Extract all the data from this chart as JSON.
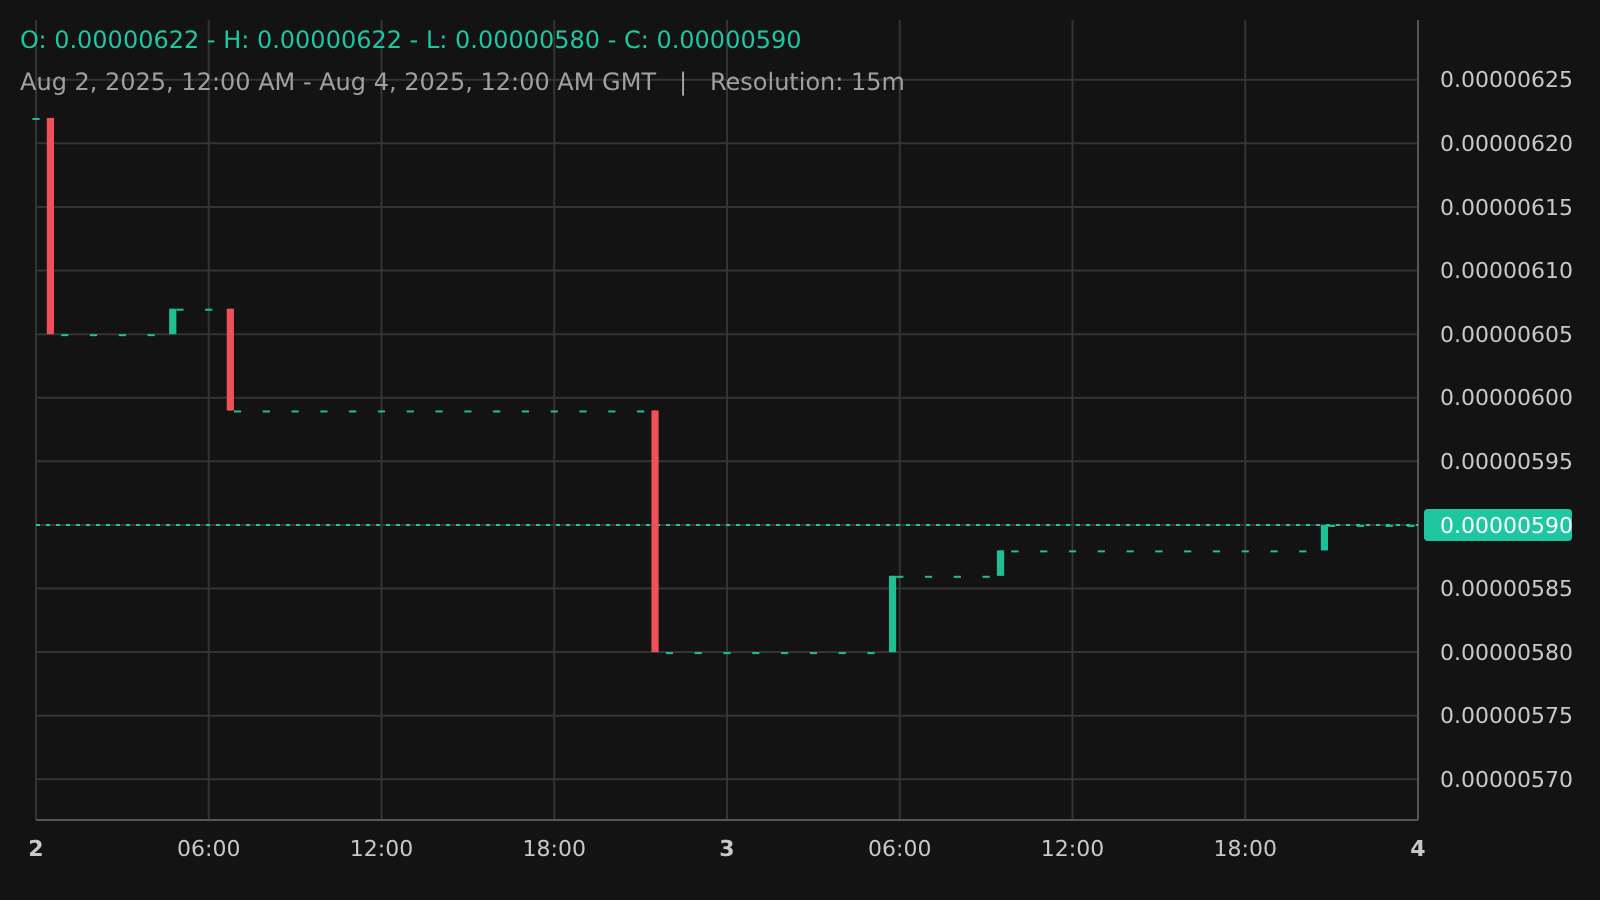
{
  "chart_data": {
    "type": "candlestick",
    "title": "O: 0.00000622 - H: 0.00000622 - L: 0.00000580 - C: 0.00000590",
    "subtitle": "Aug 2, 2025, 12:00 AM - Aug 4, 2025, 12:00 AM GMT   |   Resolution: 15m",
    "x": [
      "2025-08-02T00:00",
      "2025-08-02T00:30",
      "2025-08-02T01:00",
      "2025-08-02T02:00",
      "2025-08-02T03:00",
      "2025-08-02T04:00",
      "2025-08-02T04:45",
      "2025-08-02T05:00",
      "2025-08-02T06:00",
      "2025-08-02T06:45",
      "2025-08-02T07:00",
      "2025-08-02T08:00",
      "2025-08-02T09:00",
      "2025-08-02T10:00",
      "2025-08-02T11:00",
      "2025-08-02T12:00",
      "2025-08-02T13:00",
      "2025-08-02T14:00",
      "2025-08-02T15:00",
      "2025-08-02T16:00",
      "2025-08-02T17:00",
      "2025-08-02T18:00",
      "2025-08-02T19:00",
      "2025-08-02T20:00",
      "2025-08-02T21:00",
      "2025-08-02T21:30",
      "2025-08-02T22:00",
      "2025-08-02T23:00",
      "2025-08-03T00:00",
      "2025-08-03T01:00",
      "2025-08-03T02:00",
      "2025-08-03T03:00",
      "2025-08-03T04:00",
      "2025-08-03T05:00",
      "2025-08-03T05:45",
      "2025-08-03T06:00",
      "2025-08-03T07:00",
      "2025-08-03T08:00",
      "2025-08-03T09:00",
      "2025-08-03T09:30",
      "2025-08-03T10:00",
      "2025-08-03T11:00",
      "2025-08-03T12:00",
      "2025-08-03T13:00",
      "2025-08-03T14:00",
      "2025-08-03T15:00",
      "2025-08-03T16:00",
      "2025-08-03T17:00",
      "2025-08-03T18:00",
      "2025-08-03T19:00",
      "2025-08-03T20:00",
      "2025-08-03T20:45",
      "2025-08-03T21:00",
      "2025-08-03T22:00",
      "2025-08-03T23:00",
      "2025-08-03T23:45"
    ],
    "ohlc": [
      [
        6.22e-06,
        6.22e-06,
        6.22e-06,
        6.22e-06
      ],
      [
        6.22e-06,
        6.22e-06,
        6.05e-06,
        6.05e-06
      ],
      [
        6.05e-06,
        6.05e-06,
        6.05e-06,
        6.05e-06
      ],
      [
        6.05e-06,
        6.05e-06,
        6.05e-06,
        6.05e-06
      ],
      [
        6.05e-06,
        6.05e-06,
        6.05e-06,
        6.05e-06
      ],
      [
        6.05e-06,
        6.05e-06,
        6.05e-06,
        6.05e-06
      ],
      [
        6.05e-06,
        6.07e-06,
        6.05e-06,
        6.07e-06
      ],
      [
        6.07e-06,
        6.07e-06,
        6.07e-06,
        6.07e-06
      ],
      [
        6.07e-06,
        6.07e-06,
        6.07e-06,
        6.07e-06
      ],
      [
        6.07e-06,
        6.07e-06,
        5.99e-06,
        5.99e-06
      ],
      [
        5.99e-06,
        5.99e-06,
        5.99e-06,
        5.99e-06
      ],
      [
        5.99e-06,
        5.99e-06,
        5.99e-06,
        5.99e-06
      ],
      [
        5.99e-06,
        5.99e-06,
        5.99e-06,
        5.99e-06
      ],
      [
        5.99e-06,
        5.99e-06,
        5.99e-06,
        5.99e-06
      ],
      [
        5.99e-06,
        5.99e-06,
        5.99e-06,
        5.99e-06
      ],
      [
        5.99e-06,
        5.99e-06,
        5.99e-06,
        5.99e-06
      ],
      [
        5.99e-06,
        5.99e-06,
        5.99e-06,
        5.99e-06
      ],
      [
        5.99e-06,
        5.99e-06,
        5.99e-06,
        5.99e-06
      ],
      [
        5.99e-06,
        5.99e-06,
        5.99e-06,
        5.99e-06
      ],
      [
        5.99e-06,
        5.99e-06,
        5.99e-06,
        5.99e-06
      ],
      [
        5.99e-06,
        5.99e-06,
        5.99e-06,
        5.99e-06
      ],
      [
        5.99e-06,
        5.99e-06,
        5.99e-06,
        5.99e-06
      ],
      [
        5.99e-06,
        5.99e-06,
        5.99e-06,
        5.99e-06
      ],
      [
        5.99e-06,
        5.99e-06,
        5.99e-06,
        5.99e-06
      ],
      [
        5.99e-06,
        5.99e-06,
        5.99e-06,
        5.99e-06
      ],
      [
        5.99e-06,
        5.99e-06,
        5.8e-06,
        5.8e-06
      ],
      [
        5.8e-06,
        5.8e-06,
        5.8e-06,
        5.8e-06
      ],
      [
        5.8e-06,
        5.8e-06,
        5.8e-06,
        5.8e-06
      ],
      [
        5.8e-06,
        5.8e-06,
        5.8e-06,
        5.8e-06
      ],
      [
        5.8e-06,
        5.8e-06,
        5.8e-06,
        5.8e-06
      ],
      [
        5.8e-06,
        5.8e-06,
        5.8e-06,
        5.8e-06
      ],
      [
        5.8e-06,
        5.8e-06,
        5.8e-06,
        5.8e-06
      ],
      [
        5.8e-06,
        5.8e-06,
        5.8e-06,
        5.8e-06
      ],
      [
        5.8e-06,
        5.8e-06,
        5.8e-06,
        5.8e-06
      ],
      [
        5.8e-06,
        5.86e-06,
        5.8e-06,
        5.86e-06
      ],
      [
        5.86e-06,
        5.86e-06,
        5.86e-06,
        5.86e-06
      ],
      [
        5.86e-06,
        5.86e-06,
        5.86e-06,
        5.86e-06
      ],
      [
        5.86e-06,
        5.86e-06,
        5.86e-06,
        5.86e-06
      ],
      [
        5.86e-06,
        5.86e-06,
        5.86e-06,
        5.86e-06
      ],
      [
        5.86e-06,
        5.88e-06,
        5.86e-06,
        5.88e-06
      ],
      [
        5.88e-06,
        5.88e-06,
        5.88e-06,
        5.88e-06
      ],
      [
        5.88e-06,
        5.88e-06,
        5.88e-06,
        5.88e-06
      ],
      [
        5.88e-06,
        5.88e-06,
        5.88e-06,
        5.88e-06
      ],
      [
        5.88e-06,
        5.88e-06,
        5.88e-06,
        5.88e-06
      ],
      [
        5.88e-06,
        5.88e-06,
        5.88e-06,
        5.88e-06
      ],
      [
        5.88e-06,
        5.88e-06,
        5.88e-06,
        5.88e-06
      ],
      [
        5.88e-06,
        5.88e-06,
        5.88e-06,
        5.88e-06
      ],
      [
        5.88e-06,
        5.88e-06,
        5.88e-06,
        5.88e-06
      ],
      [
        5.88e-06,
        5.88e-06,
        5.88e-06,
        5.88e-06
      ],
      [
        5.88e-06,
        5.88e-06,
        5.88e-06,
        5.88e-06
      ],
      [
        5.88e-06,
        5.88e-06,
        5.88e-06,
        5.88e-06
      ],
      [
        5.88e-06,
        5.9e-06,
        5.88e-06,
        5.9e-06
      ],
      [
        5.9e-06,
        5.9e-06,
        5.9e-06,
        5.9e-06
      ],
      [
        5.9e-06,
        5.9e-06,
        5.9e-06,
        5.9e-06
      ],
      [
        5.9e-06,
        5.9e-06,
        5.9e-06,
        5.9e-06
      ],
      [
        5.9e-06,
        5.9e-06,
        5.9e-06,
        5.9e-06
      ]
    ],
    "colors": [
      "#1fbf95",
      "#f0505a",
      "#1fbf95",
      "#1fbf95",
      "#1fbf95",
      "#1fbf95",
      "#1fbf95",
      "#1fbf95",
      "#1fbf95",
      "#f0505a",
      "#1fbf95",
      "#1fbf95",
      "#1fbf95",
      "#1fbf95",
      "#1fbf95",
      "#1fbf95",
      "#1fbf95",
      "#1fbf95",
      "#1fbf95",
      "#1fbf95",
      "#1fbf95",
      "#1fbf95",
      "#1fbf95",
      "#1fbf95",
      "#1fbf95",
      "#f0505a",
      "#1fbf95",
      "#1fbf95",
      "#1fbf95",
      "#1fbf95",
      "#1fbf95",
      "#1fbf95",
      "#1fbf95",
      "#1fbf95",
      "#1fbf95",
      "#1fbf95",
      "#1fbf95",
      "#1fbf95",
      "#1fbf95",
      "#1fbf95",
      "#1fbf95",
      "#1fbf95",
      "#1fbf95",
      "#1fbf95",
      "#1fbf95",
      "#1fbf95",
      "#1fbf95",
      "#1fbf95",
      "#1fbf95",
      "#1fbf95",
      "#1fbf95",
      "#1fbf95",
      "#1fbf95",
      "#1fbf95",
      "#1fbf95",
      "#1fbf95"
    ],
    "xlim": [
      "2025-08-02T00:00",
      "2025-08-04T00:00"
    ],
    "xticks": [
      {
        "value": "2025-08-02T00:00",
        "label": "2"
      },
      {
        "value": "2025-08-02T06:00",
        "label": "06:00"
      },
      {
        "value": "2025-08-02T12:00",
        "label": "12:00"
      },
      {
        "value": "2025-08-02T18:00",
        "label": "18:00"
      },
      {
        "value": "2025-08-03T00:00",
        "label": "3"
      },
      {
        "value": "2025-08-03T06:00",
        "label": "06:00"
      },
      {
        "value": "2025-08-03T12:00",
        "label": "12:00"
      },
      {
        "value": "2025-08-03T18:00",
        "label": "18:00"
      },
      {
        "value": "2025-08-04T00:00",
        "label": "4"
      }
    ],
    "ylim": [
      5.668e-06,
      6.297e-06
    ],
    "yticks": [
      {
        "value": 5.7e-06,
        "label": "0.00000570"
      },
      {
        "value": 5.75e-06,
        "label": "0.00000575"
      },
      {
        "value": 5.8e-06,
        "label": "0.00000580"
      },
      {
        "value": 5.85e-06,
        "label": "0.00000585"
      },
      {
        "value": 5.9e-06,
        "label": null
      },
      {
        "value": 5.95e-06,
        "label": "0.00000595"
      },
      {
        "value": 6e-06,
        "label": "0.00000600"
      },
      {
        "value": 6.05e-06,
        "label": "0.00000605"
      },
      {
        "value": 6.1e-06,
        "label": "0.00000610"
      },
      {
        "value": 6.15e-06,
        "label": "0.00000615"
      },
      {
        "value": 6.2e-06,
        "label": "0.00000620"
      },
      {
        "value": 6.25e-06,
        "label": "0.00000625"
      }
    ],
    "ref_lines": [
      {
        "axis": "y",
        "value": 5.9e-06,
        "label": "0.00000590",
        "color": "#1fc7a0",
        "line_style": "dotted"
      }
    ],
    "grid": true
  }
}
